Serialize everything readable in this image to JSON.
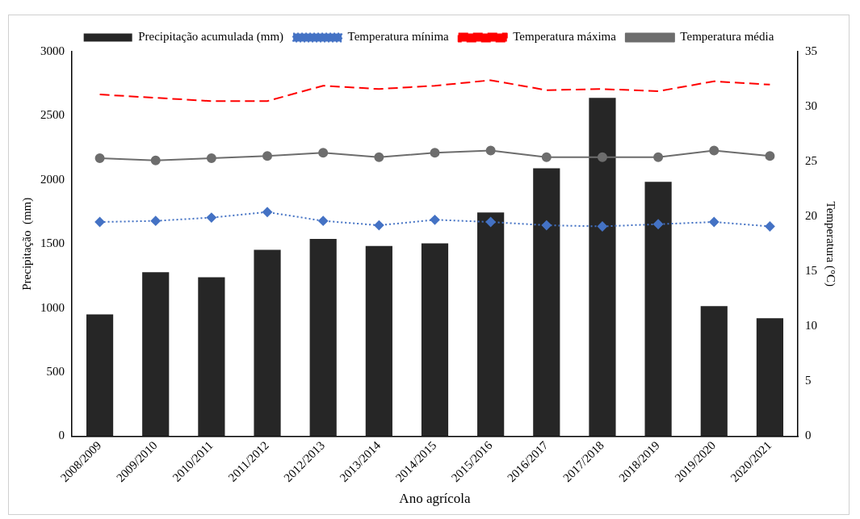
{
  "chart_data": {
    "type": "bar",
    "xlabel": "Ano agrícola",
    "ylabel": "Precipitação  (mm)",
    "y2label": "Temperatura (°C)",
    "categories": [
      "2008/2009",
      "2009/2010",
      "2010/2011",
      "2011/2012",
      "2012/2013",
      "2013/2014",
      "2014/2015",
      "2015/2016",
      "2016/2017",
      "2017/2018",
      "2018/2019",
      "2019/2020",
      "2020/2021"
    ],
    "series": [
      {
        "name": "Precipitação acumulada (mm)",
        "color": "#262626",
        "values": [
          950,
          1280,
          1240,
          1455,
          1540,
          1485,
          1505,
          1745,
          2090,
          2640,
          1985,
          1015,
          920
        ]
      },
      {
        "name": "Temperatura mínima",
        "type": "line",
        "axis": "y2",
        "color": "#4472c4",
        "marker": "diamond",
        "line_style": "dotted",
        "values": [
          19.5,
          19.6,
          19.9,
          20.4,
          19.6,
          19.2,
          19.7,
          19.5,
          19.2,
          19.1,
          19.3,
          19.5,
          19.1
        ]
      },
      {
        "name": "Temperatura máxima",
        "type": "line",
        "axis": "y2",
        "color": "#ff0000",
        "marker": "none",
        "line_style": "dashed",
        "values": [
          31.1,
          30.8,
          30.5,
          30.5,
          31.9,
          31.6,
          31.9,
          32.4,
          31.5,
          31.6,
          31.4,
          32.3,
          32.0
        ]
      },
      {
        "name": "Temperatura média",
        "type": "line",
        "axis": "y2",
        "color": "#6d6d6d",
        "marker": "circle",
        "line_style": "solid",
        "values": [
          25.3,
          25.1,
          25.3,
          25.5,
          25.8,
          25.4,
          25.8,
          26.0,
          25.4,
          25.4,
          25.4,
          26.0,
          25.5
        ]
      }
    ],
    "ylim": [
      0,
      3000
    ],
    "yticks": [
      0,
      500,
      1000,
      1500,
      2000,
      2500,
      3000
    ],
    "y2lim": [
      0,
      35
    ],
    "y2ticks": [
      0,
      5,
      10,
      15,
      20,
      25,
      30,
      35
    ],
    "grid": false,
    "legend": "top"
  }
}
